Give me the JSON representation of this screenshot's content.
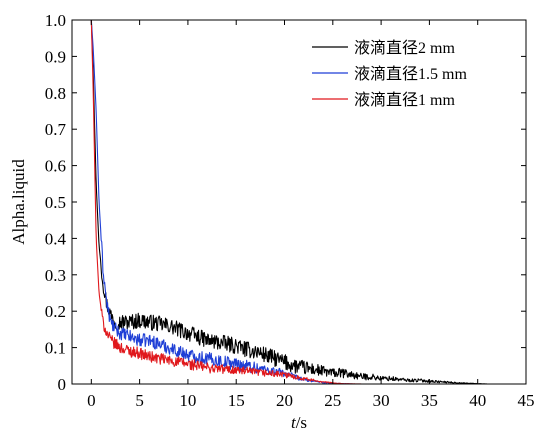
{
  "chart_data": {
    "type": "line",
    "title": "",
    "xlabel_italic": "t",
    "xlabel_unit": "/s",
    "ylabel": "Alpha.liquid",
    "xlim": [
      -2,
      45
    ],
    "ylim": [
      0,
      1.0
    ],
    "xticks": [
      0,
      5,
      10,
      15,
      20,
      25,
      30,
      35,
      40,
      45
    ],
    "yticks": [
      0,
      0.1,
      0.2,
      0.3,
      0.4,
      0.5,
      0.6,
      0.7,
      0.8,
      0.9,
      1.0
    ],
    "xtick_labels": [
      "0",
      "5",
      "10",
      "15",
      "20",
      "25",
      "30",
      "35",
      "40",
      "45"
    ],
    "ytick_labels": [
      "0",
      "0.1",
      "0.2",
      "0.3",
      "0.4",
      "0.5",
      "0.6",
      "0.7",
      "0.8",
      "0.9",
      "1.0"
    ],
    "grid": false,
    "legend_position": "top-right",
    "series": [
      {
        "name": "液滴直径2 mm",
        "color": "#000000",
        "noise": 0.022,
        "x": [
          0,
          0.2,
          0.5,
          0.8,
          1.2,
          1.6,
          2,
          2.5,
          3,
          3.5,
          4,
          5,
          6,
          7,
          8,
          9,
          10,
          11,
          12,
          13,
          14,
          15,
          16,
          17,
          18,
          19,
          20,
          21,
          22,
          23,
          24,
          25,
          26,
          27,
          28,
          29,
          30,
          31,
          32,
          33,
          34,
          35,
          36,
          37,
          38,
          39,
          40,
          41
        ],
        "y": [
          1.0,
          0.85,
          0.55,
          0.38,
          0.28,
          0.22,
          0.19,
          0.17,
          0.17,
          0.17,
          0.17,
          0.175,
          0.17,
          0.165,
          0.16,
          0.15,
          0.14,
          0.13,
          0.12,
          0.115,
          0.11,
          0.105,
          0.095,
          0.09,
          0.08,
          0.07,
          0.06,
          0.05,
          0.045,
          0.04,
          0.035,
          0.03,
          0.03,
          0.025,
          0.02,
          0.02,
          0.015,
          0.015,
          0.012,
          0.01,
          0.01,
          0.008,
          0.006,
          0.005,
          0.003,
          0.002,
          0.001,
          0.0
        ]
      },
      {
        "name": "液滴直径1.5 mm",
        "color": "#1f3fd6",
        "noise": 0.018,
        "x": [
          0,
          0.2,
          0.5,
          0.8,
          1.2,
          1.6,
          2,
          2.5,
          3,
          4,
          5,
          6,
          7,
          8,
          9,
          10,
          11,
          12,
          13,
          14,
          15,
          16,
          17,
          18,
          19,
          20,
          21,
          22,
          23,
          24,
          25,
          26,
          27
        ],
        "y": [
          1.0,
          0.92,
          0.75,
          0.5,
          0.32,
          0.22,
          0.17,
          0.15,
          0.14,
          0.13,
          0.12,
          0.12,
          0.11,
          0.1,
          0.09,
          0.08,
          0.075,
          0.07,
          0.065,
          0.06,
          0.055,
          0.05,
          0.045,
          0.04,
          0.035,
          0.03,
          0.02,
          0.012,
          0.008,
          0.004,
          0.002,
          0.001,
          0.0
        ]
      },
      {
        "name": "液滴直径1 mm",
        "color": "#e0181c",
        "noise": 0.016,
        "x": [
          0,
          0.2,
          0.5,
          0.8,
          1.2,
          1.6,
          2,
          2.5,
          3,
          4,
          5,
          6,
          7,
          8,
          9,
          10,
          11,
          12,
          13,
          14,
          15,
          16,
          17,
          18,
          19,
          20,
          21,
          22,
          23,
          24,
          25,
          26,
          27,
          28
        ],
        "y": [
          1.0,
          0.8,
          0.4,
          0.25,
          0.17,
          0.14,
          0.12,
          0.11,
          0.1,
          0.09,
          0.085,
          0.075,
          0.07,
          0.065,
          0.06,
          0.055,
          0.05,
          0.045,
          0.042,
          0.04,
          0.038,
          0.035,
          0.032,
          0.03,
          0.028,
          0.025,
          0.02,
          0.015,
          0.01,
          0.006,
          0.003,
          0.001,
          0.0005,
          0.0
        ]
      }
    ]
  }
}
